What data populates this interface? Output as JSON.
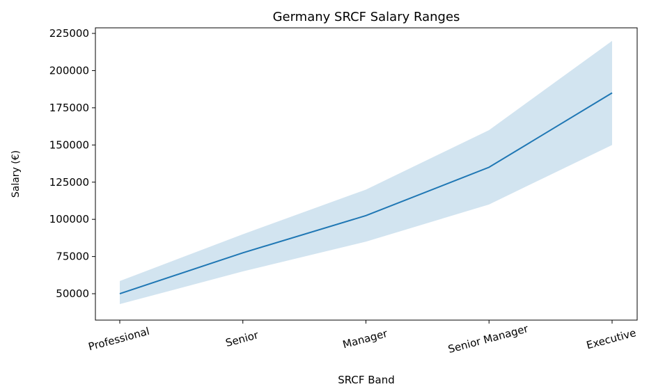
{
  "chart_data": {
    "type": "line_band",
    "title": "Germany SRCF Salary Ranges",
    "x_label": "SRCF Band",
    "y_label": "Salary (€)",
    "categories": [
      "Professional",
      "Senior",
      "Manager",
      "Senior Manager",
      "Executive"
    ],
    "values": [
      50000,
      77500,
      102500,
      135000,
      185000
    ],
    "lower": [
      43000,
      65000,
      85000,
      110000,
      150000
    ],
    "upper": [
      58500,
      90000,
      120000,
      160000,
      220000
    ],
    "color": "#1f77b4",
    "ylim": [
      32250,
      228750
    ],
    "yticks": [
      50000,
      75000,
      100000,
      125000,
      150000,
      175000,
      200000,
      225000
    ]
  }
}
